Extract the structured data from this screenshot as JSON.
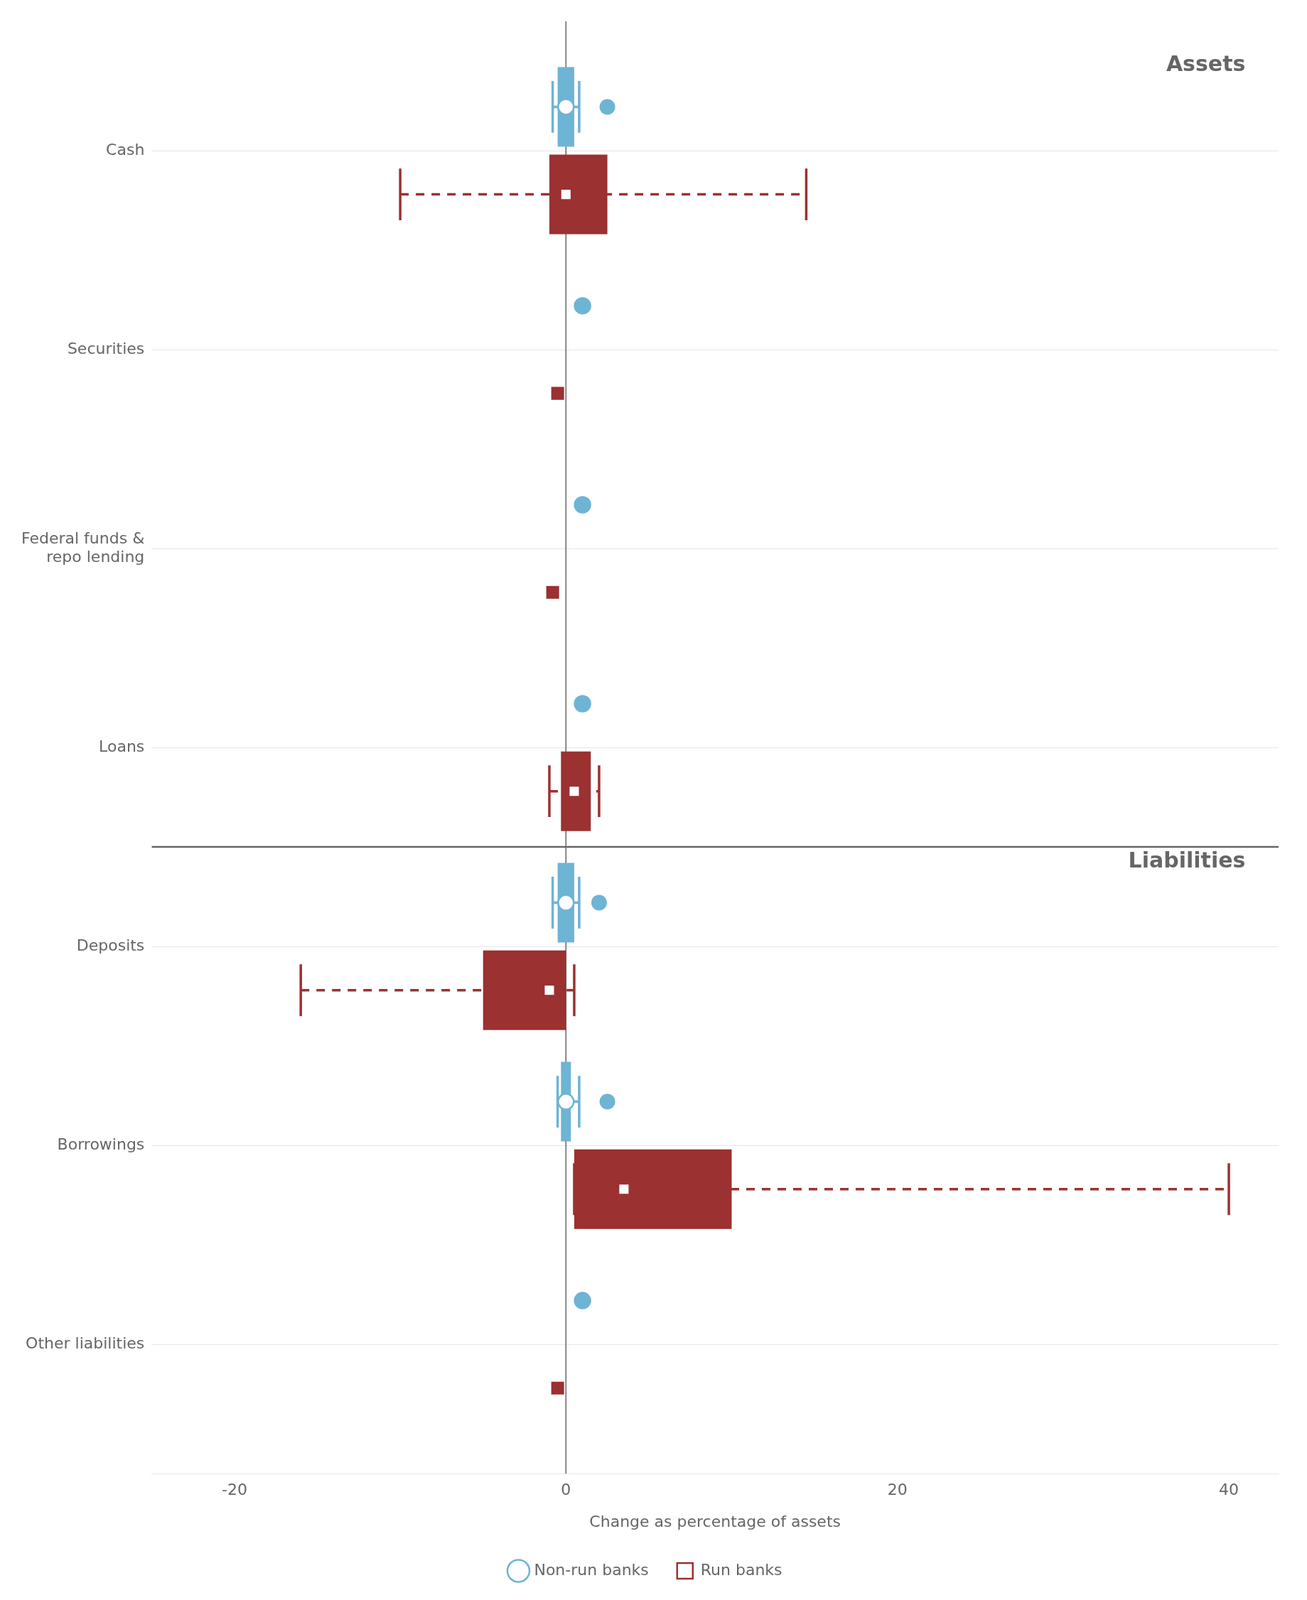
{
  "chart_data": {
    "type": "boxplot",
    "orientation": "horizontal",
    "categories": [
      "Cash",
      "Securities",
      "Federal funds &\nrepo lending",
      "Loans",
      "Deposits",
      "Borrowings",
      "Other liabilities"
    ],
    "series": [
      {
        "name": "Non-run banks",
        "color": "#6EB4D4",
        "marker": "circle",
        "line_style": "solid",
        "values": [
          0.0,
          1.0,
          1.0,
          1.0,
          0.0,
          0.0,
          1.0
        ],
        "q1": [
          -0.5,
          null,
          null,
          null,
          -0.5,
          -0.3,
          null
        ],
        "q3": [
          0.5,
          null,
          null,
          null,
          0.5,
          0.3,
          null
        ],
        "lo": [
          -0.8,
          null,
          null,
          null,
          -0.8,
          -0.5,
          null
        ],
        "hi": [
          0.8,
          null,
          null,
          null,
          0.8,
          0.8,
          null
        ],
        "dot": [
          2.5,
          null,
          null,
          null,
          2.0,
          2.5,
          null
        ]
      },
      {
        "name": "Run banks",
        "color": "#9B3131",
        "marker": "square",
        "line_style": "dashed",
        "values": [
          0.0,
          -0.5,
          -0.8,
          0.5,
          -1.0,
          3.5,
          -0.5
        ],
        "q1": [
          -1.0,
          null,
          null,
          -0.3,
          -5.0,
          0.5,
          null
        ],
        "q3": [
          2.5,
          null,
          null,
          1.5,
          0.0,
          10.0,
          null
        ],
        "lo": [
          -10.0,
          null,
          null,
          -1.0,
          -16.0,
          0.5,
          null
        ],
        "hi": [
          14.5,
          null,
          null,
          2.0,
          0.5,
          40.0,
          null
        ]
      }
    ],
    "xlim": [
      -25,
      43
    ],
    "xticks": [
      -20,
      0,
      20,
      40
    ],
    "xlabel": "Change as percentage of assets",
    "grid": "y",
    "legend": "bottom",
    "vlines": [
      0
    ],
    "annotations": [
      {
        "text": "Assets",
        "x": 41,
        "category": "Cash"
      },
      {
        "text": "Liabilities",
        "x": 41,
        "category": "Deposits"
      }
    ]
  }
}
